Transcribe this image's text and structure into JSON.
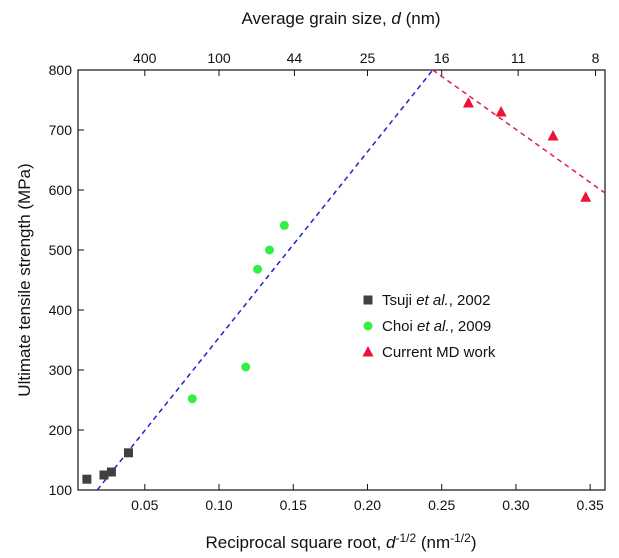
{
  "chart_data": {
    "type": "scatter",
    "xlabel": {
      "main": "Reciprocal square root, ",
      "var": "d",
      "exp": "-1/2",
      "unit_open": " (nm",
      "unit_exp": "-1/2",
      "unit_close": ")"
    },
    "ylabel": "Ultimate tensile strength (MPa)",
    "top_xlabel": {
      "main": "Average grain size, ",
      "var": "d",
      "unit": " (nm)"
    },
    "xlim": [
      0.005,
      0.36
    ],
    "ylim": [
      100,
      800
    ],
    "x_ticks": [
      0.05,
      0.1,
      0.15,
      0.2,
      0.25,
      0.3,
      0.35
    ],
    "x_tick_labels": [
      "0.05",
      "0.10",
      "0.15",
      "0.20",
      "0.25",
      "0.30",
      "0.35"
    ],
    "y_ticks": [
      100,
      200,
      300,
      400,
      500,
      600,
      700,
      800
    ],
    "y_tick_labels": [
      "100",
      "200",
      "300",
      "400",
      "500",
      "600",
      "700",
      "800"
    ],
    "top_ticks": [
      {
        "label": "400",
        "x": 0.05
      },
      {
        "label": "100",
        "x": 0.1
      },
      {
        "label": "44",
        "x": 0.1508
      },
      {
        "label": "25",
        "x": 0.2
      },
      {
        "label": "16",
        "x": 0.25
      },
      {
        "label": "11",
        "x": 0.3015
      },
      {
        "label": "8",
        "x": 0.3536
      }
    ],
    "series": [
      {
        "name_parts": [
          "Tsuji ",
          "et al.",
          ", 2002"
        ],
        "marker": "square",
        "color": "#404040",
        "points": [
          [
            0.011,
            118
          ],
          [
            0.0225,
            125
          ],
          [
            0.0275,
            130
          ],
          [
            0.039,
            162
          ]
        ]
      },
      {
        "name_parts": [
          "Choi ",
          "et al.",
          ", 2009"
        ],
        "marker": "circle",
        "color": "#33ee44",
        "points": [
          [
            0.082,
            252
          ],
          [
            0.118,
            305
          ],
          [
            0.126,
            468
          ],
          [
            0.134,
            500
          ],
          [
            0.144,
            541
          ]
        ]
      },
      {
        "name_parts": [
          "Current MD work",
          "",
          ""
        ],
        "marker": "triangle",
        "color": "#ee1133",
        "points": [
          [
            0.268,
            745
          ],
          [
            0.29,
            730
          ],
          [
            0.325,
            690
          ],
          [
            0.347,
            588
          ]
        ]
      }
    ],
    "fit_lines": [
      {
        "color": "#2222cc",
        "from": [
          0.018,
          100
        ],
        "to": [
          0.244,
          800
        ]
      },
      {
        "color": "#dd2244",
        "from": [
          0.244,
          800
        ],
        "to": [
          0.36,
          595
        ]
      }
    ],
    "grid": false,
    "legend_position": "center-right"
  }
}
